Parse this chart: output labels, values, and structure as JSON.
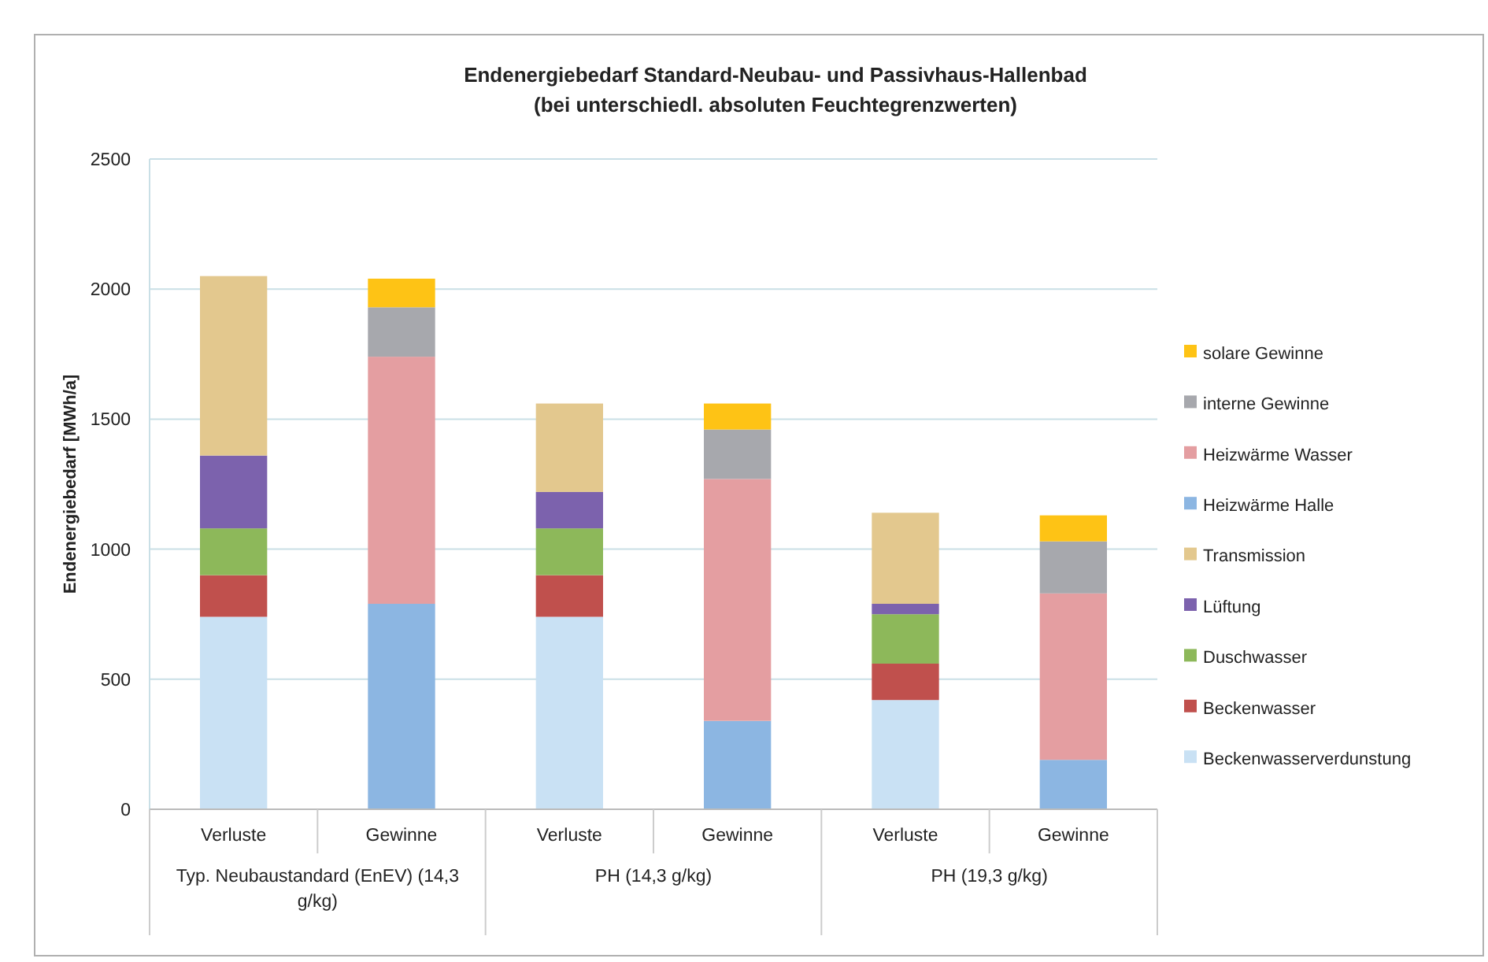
{
  "chart_data": {
    "type": "bar",
    "stacked": true,
    "title": "Endenergiebedarf Standard-Neubau- und  Passivhaus-Hallenbad",
    "subtitle": "(bei unterschiedl. absoluten Feuchtegrenzwerten)",
    "ylabel": "Endenergiebedarf  [MWh/a]",
    "categories": [
      "Verluste",
      "Gewinne",
      "Verluste",
      "Gewinne",
      "Verluste",
      "Gewinne"
    ],
    "annotations": [
      "Typ. Neubaustandard (EnEV) (14,3 g/kg)",
      "PH (14,3 g/kg)",
      "PH (19,3 g/kg)"
    ],
    "series": [
      {
        "name": "Beckenwasserverdunstung",
        "color": "#c9e1f4",
        "values": [
          740,
          0,
          740,
          0,
          420,
          0
        ]
      },
      {
        "name": "Beckenwasser",
        "color": "#c0504d",
        "values": [
          160,
          0,
          160,
          0,
          140,
          0
        ]
      },
      {
        "name": "Duschwasser",
        "color": "#8db85a",
        "values": [
          180,
          0,
          180,
          0,
          190,
          0
        ]
      },
      {
        "name": "Lüftung",
        "color": "#7c62ad",
        "values": [
          280,
          0,
          140,
          0,
          40,
          0
        ]
      },
      {
        "name": "Transmission",
        "color": "#e3c88e",
        "values": [
          690,
          0,
          340,
          0,
          350,
          0
        ]
      },
      {
        "name": "Heizwärme Halle",
        "color": "#8cb6e2",
        "values": [
          0,
          790,
          0,
          340,
          0,
          190
        ]
      },
      {
        "name": "Heizwärme Wasser",
        "color": "#e49ea1",
        "values": [
          0,
          950,
          0,
          930,
          0,
          640
        ]
      },
      {
        "name": "interne Gewinne",
        "color": "#a7a8ad",
        "values": [
          0,
          190,
          0,
          190,
          0,
          200
        ]
      },
      {
        "name": "solare Gewinne",
        "color": "#fec315",
        "values": [
          0,
          110,
          0,
          100,
          0,
          100
        ]
      }
    ],
    "ylim": [
      0,
      2500
    ],
    "yticks": [
      0,
      500,
      1000,
      1500,
      2000,
      2500
    ],
    "grid": "y",
    "legend": "right"
  }
}
